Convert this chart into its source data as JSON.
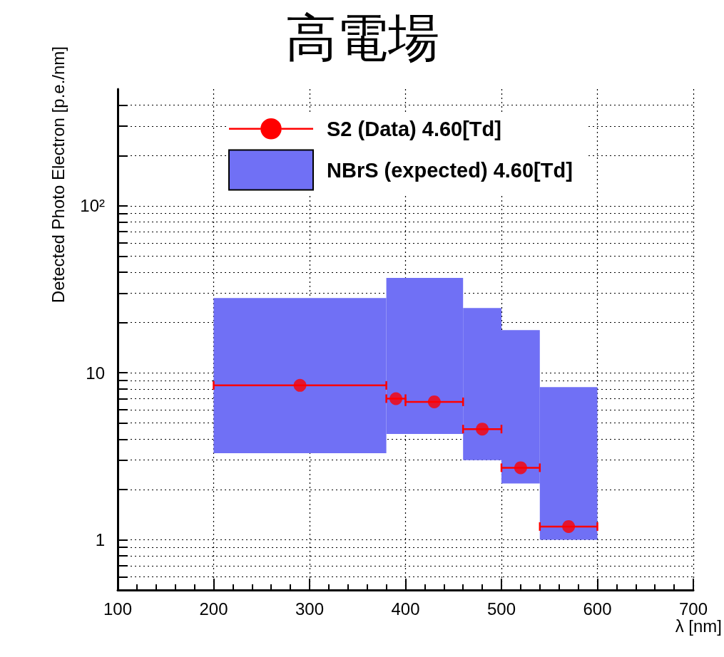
{
  "chart_data": {
    "type": "scatter",
    "title": "高電場",
    "xlabel": "λ [nm]",
    "ylabel": "Detected Photo Electron [p.e./nm]",
    "xlim": [
      100,
      700
    ],
    "xticks": [
      100,
      200,
      300,
      400,
      500,
      600,
      700
    ],
    "ylim": [
      0.5,
      500
    ],
    "log": "y",
    "yticks": [
      {
        "value": 0.6,
        "label": null
      },
      {
        "value": 0.7,
        "label": null
      },
      {
        "value": 0.8,
        "label": null
      },
      {
        "value": 0.9,
        "label": null
      },
      1,
      {
        "value": 2,
        "label": null
      },
      {
        "value": 3,
        "label": null
      },
      {
        "value": 4,
        "label": null
      },
      {
        "value": 5,
        "label": null
      },
      {
        "value": 6,
        "label": null
      },
      {
        "value": 7,
        "label": null
      },
      {
        "value": 8,
        "label": null
      },
      {
        "value": 9,
        "label": null
      },
      10,
      {
        "value": 20,
        "label": null
      },
      {
        "value": 30,
        "label": null
      },
      {
        "value": 40,
        "label": null
      },
      {
        "value": 50,
        "label": null
      },
      {
        "value": 60,
        "label": null
      },
      {
        "value": 70,
        "label": null
      },
      {
        "value": 80,
        "label": null
      },
      {
        "value": 90,
        "label": null
      },
      {
        "value": 100,
        "label": "10²"
      },
      {
        "value": 200,
        "label": null
      },
      {
        "value": 300,
        "label": null
      },
      {
        "value": 400,
        "label": null
      }
    ],
    "grid": true,
    "legend": "top",
    "marker": "circle",
    "series": [
      {
        "name": "S2 (Data) 4.60[Td]",
        "color": "#ff0000",
        "x": [
          290,
          390,
          430,
          480,
          520,
          570
        ],
        "values": [
          8.4,
          7.0,
          6.7,
          4.6,
          2.7,
          1.2
        ],
        "xerrors": [
          90,
          10,
          30,
          20,
          20,
          30
        ]
      },
      {
        "name": "NBrS (expected) 4.60[Td]",
        "type": "histogram",
        "color": "#7070f5",
        "bins": [
          200,
          380,
          460,
          500,
          540,
          600
        ],
        "base": [
          3.3,
          4.3,
          3.0,
          2.17,
          1.0
        ],
        "values": [
          24.7,
          32.7,
          21.4,
          15.83,
          7.2
        ]
      }
    ]
  }
}
